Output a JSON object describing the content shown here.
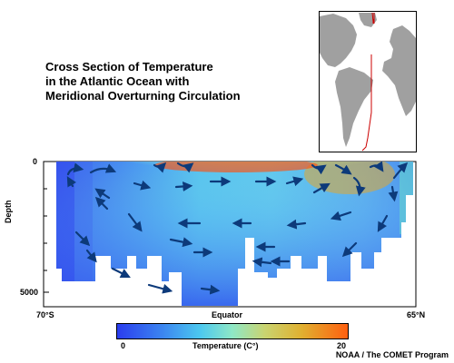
{
  "title": {
    "line1": "Cross Section of Temperature",
    "line2": "in the Atlantic Ocean with",
    "line3": "Meridional Overturning Circulation"
  },
  "axis": {
    "ylabel": "Depth",
    "ytick_top": "0",
    "ytick_bottom": "5000",
    "xtick_left": "70°S",
    "xtick_mid": "Equator",
    "xtick_right": "65°N"
  },
  "colorbar": {
    "label": "Temperature (C°)",
    "min": "0",
    "max": "20",
    "gradient_colors": [
      "#2a3dee",
      "#3a7ff0",
      "#4cc8ef",
      "#8fe8c6",
      "#c9d470",
      "#e0b030",
      "#ff6010"
    ]
  },
  "credit": "NOAA / The COMET Program",
  "colors": {
    "cold": "#2a3dee",
    "warm": "#ff6010",
    "arrow": "#0d3a7a",
    "land": "#a0a0a0",
    "transect_line": "#cc0000"
  }
}
